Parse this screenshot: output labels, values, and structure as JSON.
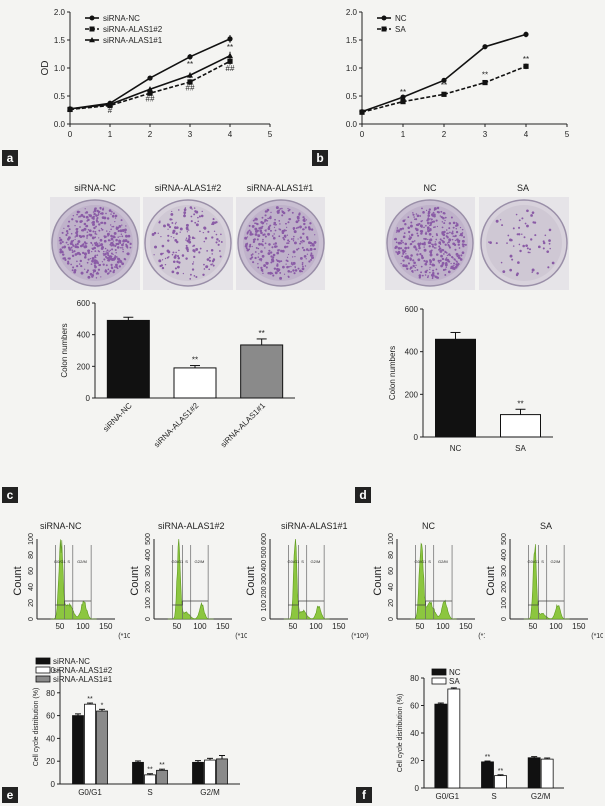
{
  "panels": {
    "a": "a",
    "b": "b",
    "c": "c",
    "d": "d",
    "e": "e",
    "f": "f"
  },
  "dishes_c": [
    "siRNA-NC",
    "siRNA-ALAS1#2",
    "siRNA-ALAS1#1"
  ],
  "dishes_d": [
    "NC",
    "SA"
  ],
  "flow_titles": [
    "siRNA-NC",
    "siRNA-ALAS1#2",
    "siRNA-ALAS1#1",
    "NC",
    "SA"
  ],
  "flow_axis": {
    "ylabel": "Count",
    "xticks": [
      "50",
      "100",
      "150"
    ],
    "xunit": "(*10³)",
    "yticks_1": [
      "0",
      "20",
      "40",
      "60",
      "80",
      "100"
    ],
    "yticks_2": [
      "0",
      "100",
      "200",
      "300",
      "400",
      "500"
    ],
    "yticks_3": [
      "0",
      "100",
      "200",
      "300",
      "400",
      "500",
      "600"
    ],
    "gate_labels": [
      "G0/G1",
      "S",
      "G2/M"
    ]
  },
  "colors": {
    "black_bar": "#111111",
    "white_bar": "#ffffff",
    "gray_bar": "#8a8a8a",
    "flow_green": "#8cc63f",
    "dish_purple": "#8a5ba6"
  },
  "chart_data": [
    {
      "id": "a",
      "type": "line",
      "xlabel": "",
      "ylabel": "OD",
      "xlim": [
        0,
        5
      ],
      "ylim": [
        0.0,
        2.0
      ],
      "xticks": [
        0,
        1,
        2,
        3,
        4,
        5
      ],
      "yticks": [
        0.0,
        0.5,
        1.0,
        1.5,
        2.0
      ],
      "x": [
        0,
        1,
        2,
        3,
        4
      ],
      "legend": "top-left",
      "series": [
        {
          "name": "siRNA-NC",
          "values": [
            0.27,
            0.37,
            0.82,
            1.2,
            1.52
          ],
          "err": [
            0.02,
            0.02,
            0.04,
            0.05,
            0.07
          ]
        },
        {
          "name": "siRNA-ALAS1#2",
          "values": [
            0.26,
            0.33,
            0.55,
            0.75,
            1.12
          ],
          "err": [
            0.02,
            0.02,
            0.04,
            0.05,
            0.06
          ]
        },
        {
          "name": "siRNA-ALAS1#1",
          "values": [
            0.27,
            0.35,
            0.62,
            0.87,
            1.22
          ],
          "err": [
            0.02,
            0.02,
            0.04,
            0.05,
            0.07
          ]
        }
      ],
      "annotations": [
        {
          "x": 1,
          "y": 0.2,
          "text": "#"
        },
        {
          "x": 2,
          "y": 0.4,
          "text": "##"
        },
        {
          "x": 3,
          "y": 0.6,
          "text": "##"
        },
        {
          "x": 4,
          "y": 0.95,
          "text": "##"
        },
        {
          "x": 2,
          "y": 0.72,
          "text": "*"
        },
        {
          "x": 3,
          "y": 1.02,
          "text": "**"
        },
        {
          "x": 4,
          "y": 1.32,
          "text": "**"
        }
      ]
    },
    {
      "id": "b",
      "type": "line",
      "xlabel": "",
      "ylabel": "OD",
      "xlim": [
        0,
        5
      ],
      "ylim": [
        0.0,
        2.0
      ],
      "xticks": [
        0,
        1,
        2,
        3,
        4,
        5
      ],
      "yticks": [
        0.0,
        0.5,
        1.0,
        1.5,
        2.0
      ],
      "x": [
        0,
        1,
        2,
        3,
        4
      ],
      "legend": "top-left",
      "series": [
        {
          "name": "NC",
          "values": [
            0.22,
            0.48,
            0.78,
            1.38,
            1.6
          ],
          "err": [
            0.02,
            0.03,
            0.04,
            0.04,
            0.05
          ]
        },
        {
          "name": "SA",
          "values": [
            0.21,
            0.4,
            0.53,
            0.74,
            1.03
          ],
          "err": [
            0.02,
            0.03,
            0.04,
            0.04,
            0.05
          ]
        }
      ],
      "annotations": [
        {
          "x": 1,
          "y": 0.52,
          "text": "**"
        },
        {
          "x": 2,
          "y": 0.64,
          "text": "**"
        },
        {
          "x": 3,
          "y": 0.83,
          "text": "**"
        },
        {
          "x": 4,
          "y": 1.11,
          "text": "**"
        }
      ]
    },
    {
      "id": "c",
      "type": "bar",
      "ylabel": "Colon numbers",
      "ylim": [
        0,
        600
      ],
      "yticks": [
        0,
        200,
        400,
        600
      ],
      "categories": [
        "siRNA-NC",
        "siRNA-ALAS1#2",
        "siRNA-ALAS1#1"
      ],
      "values": [
        490,
        190,
        335
      ],
      "err": [
        20,
        15,
        38
      ],
      "bar_colors": [
        "#111111",
        "#ffffff",
        "#8a8a8a"
      ],
      "annotations": [
        "",
        "**",
        "**"
      ]
    },
    {
      "id": "d",
      "type": "bar",
      "ylabel": "Colon numbers",
      "ylim": [
        0,
        600
      ],
      "yticks": [
        0,
        200,
        400,
        600
      ],
      "categories": [
        "NC",
        "SA"
      ],
      "values": [
        458,
        105
      ],
      "err": [
        32,
        25
      ],
      "bar_colors": [
        "#111111",
        "#ffffff"
      ],
      "annotations": [
        "",
        "**"
      ]
    },
    {
      "id": "e",
      "type": "bar",
      "ylabel": "Cell cycle distribution (%)",
      "ylim": [
        0,
        100
      ],
      "yticks": [
        0,
        20,
        40,
        60,
        80,
        100
      ],
      "categories": [
        "G0/G1",
        "S",
        "G2/M"
      ],
      "legend": "top-left",
      "series": [
        {
          "name": "siRNA-NC",
          "values": [
            60,
            19,
            19
          ],
          "err": [
            1.5,
            1.2,
            1.5
          ]
        },
        {
          "name": "siRNA-ALAS1#2",
          "values": [
            70,
            8,
            21
          ],
          "err": [
            1.0,
            1.0,
            1.5
          ]
        },
        {
          "name": "siRNA-ALAS1#1",
          "values": [
            64,
            12,
            22
          ],
          "err": [
            1.5,
            1.0,
            3.0
          ]
        }
      ],
      "annotations": [
        [
          "",
          "**",
          "*"
        ],
        [
          "",
          "**",
          "**"
        ],
        [
          "",
          "",
          ""
        ]
      ]
    },
    {
      "id": "f",
      "type": "bar",
      "ylabel": "Cell cycle distribution (%)",
      "ylim": [
        0,
        80
      ],
      "yticks": [
        0,
        20,
        40,
        60,
        80
      ],
      "categories": [
        "G0/G1",
        "S",
        "G2/M"
      ],
      "legend": "top-left",
      "series": [
        {
          "name": "NC",
          "values": [
            61,
            19,
            22
          ],
          "err": [
            0.8,
            0.6,
            0.8
          ]
        },
        {
          "name": "SA",
          "values": [
            72,
            9,
            21
          ],
          "err": [
            0.8,
            0.6,
            0.8
          ]
        }
      ],
      "annotations": [
        [
          "",
          ""
        ],
        [
          "**",
          "**"
        ],
        [
          "",
          ""
        ]
      ]
    }
  ]
}
